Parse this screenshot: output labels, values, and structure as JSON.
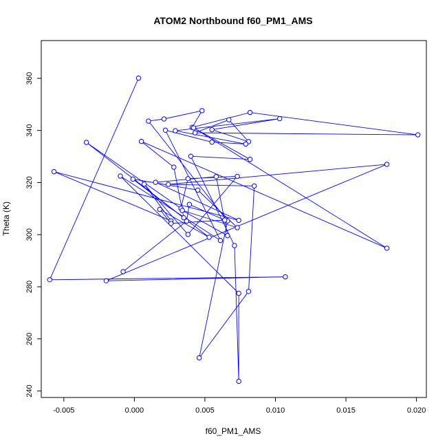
{
  "chart_data": {
    "type": "line",
    "title": "ATOM2 Northbound f60_PM1_AMS",
    "xlabel": "f60_PM1_AMS",
    "ylabel": "Theta (K)",
    "xlim": [
      -0.0066,
      0.0207
    ],
    "ylim": [
      237.5,
      374.5
    ],
    "x_ticks": [
      -0.005,
      0.0,
      0.005,
      0.01,
      0.015,
      0.02
    ],
    "x_tick_labels": [
      "-0.005",
      "0.000",
      "0.005",
      "0.010",
      "0.015",
      "0.020"
    ],
    "y_ticks": [
      240,
      260,
      280,
      300,
      320,
      340,
      360
    ],
    "y_tick_labels": [
      "240",
      "260",
      "280",
      "300",
      "320",
      "340",
      "360"
    ],
    "grid": false,
    "line_color": "#0000ff",
    "marker": "open-circle",
    "series": [
      {
        "points": [
          [
            0.0003,
            360.1
          ],
          [
            -0.006,
            282.7
          ],
          [
            0.0107,
            283.8
          ],
          [
            -0.002,
            282.3
          ],
          [
            0.0179,
            327.0
          ],
          [
            0.0024,
            319.3
          ],
          [
            0.0085,
            318.7
          ],
          [
            0.0081,
            278.2
          ],
          [
            0.0046,
            252.7
          ],
          [
            0.0066,
            305.3
          ],
          [
            0.001,
            343.6
          ],
          [
            0.0021,
            344.4
          ],
          [
            0.0048,
            347.6
          ],
          [
            0.0041,
            341.2
          ],
          [
            0.0082,
            346.9
          ],
          [
            0.0201,
            338.3
          ],
          [
            0.0043,
            339.1
          ],
          [
            0.0067,
            344.1
          ],
          [
            0.0081,
            335.7
          ],
          [
            0.0055,
            340.3
          ],
          [
            0.0103,
            344.5
          ],
          [
            0.0029,
            339.9
          ],
          [
            0.0079,
            334.8
          ],
          [
            0.0055,
            335.5
          ],
          [
            0.0022,
            340.1
          ],
          [
            0.0061,
            297.8
          ],
          [
            -0.001,
            322.5
          ],
          [
            0.0074,
            277.5
          ],
          [
            0.0074,
            243.7
          ],
          [
            0.0071,
            295.8
          ],
          [
            0.004,
            330.1
          ],
          [
            0.0082,
            328.9
          ],
          [
            0.0042,
            341.0
          ],
          [
            0.0179,
            294.8
          ],
          [
            0.0005,
            335.8
          ],
          [
            0.0028,
            325.9
          ],
          [
            0.0035,
            306.5
          ],
          [
            -0.0034,
            335.4
          ],
          [
            0.0033,
            310.1
          ],
          [
            0.0038,
            321.5
          ],
          [
            0.0073,
            322.4
          ],
          [
            0.0038,
            300.1
          ],
          [
            0.0007,
            319.4
          ],
          [
            0.0026,
            305.3
          ],
          [
            -0.0057,
            324.2
          ],
          [
            0.0074,
            305.5
          ],
          [
            0.0015,
            320.1
          ],
          [
            0.0058,
            322.3
          ],
          [
            0.0066,
            299.6
          ],
          [
            0.0034,
            309.3
          ],
          [
            0.0073,
            302.7
          ],
          [
            0.0045,
            317.1
          ],
          [
            -0.0001,
            321.3
          ],
          [
            0.0053,
            299.0
          ],
          [
            0.0018,
            309.7
          ],
          [
            0.0026,
            304.3
          ],
          [
            0.0064,
            305.6
          ],
          [
            0.0039,
            311.6
          ],
          [
            0.0037,
            305.2
          ],
          [
            -0.0008,
            285.8
          ]
        ]
      }
    ]
  }
}
